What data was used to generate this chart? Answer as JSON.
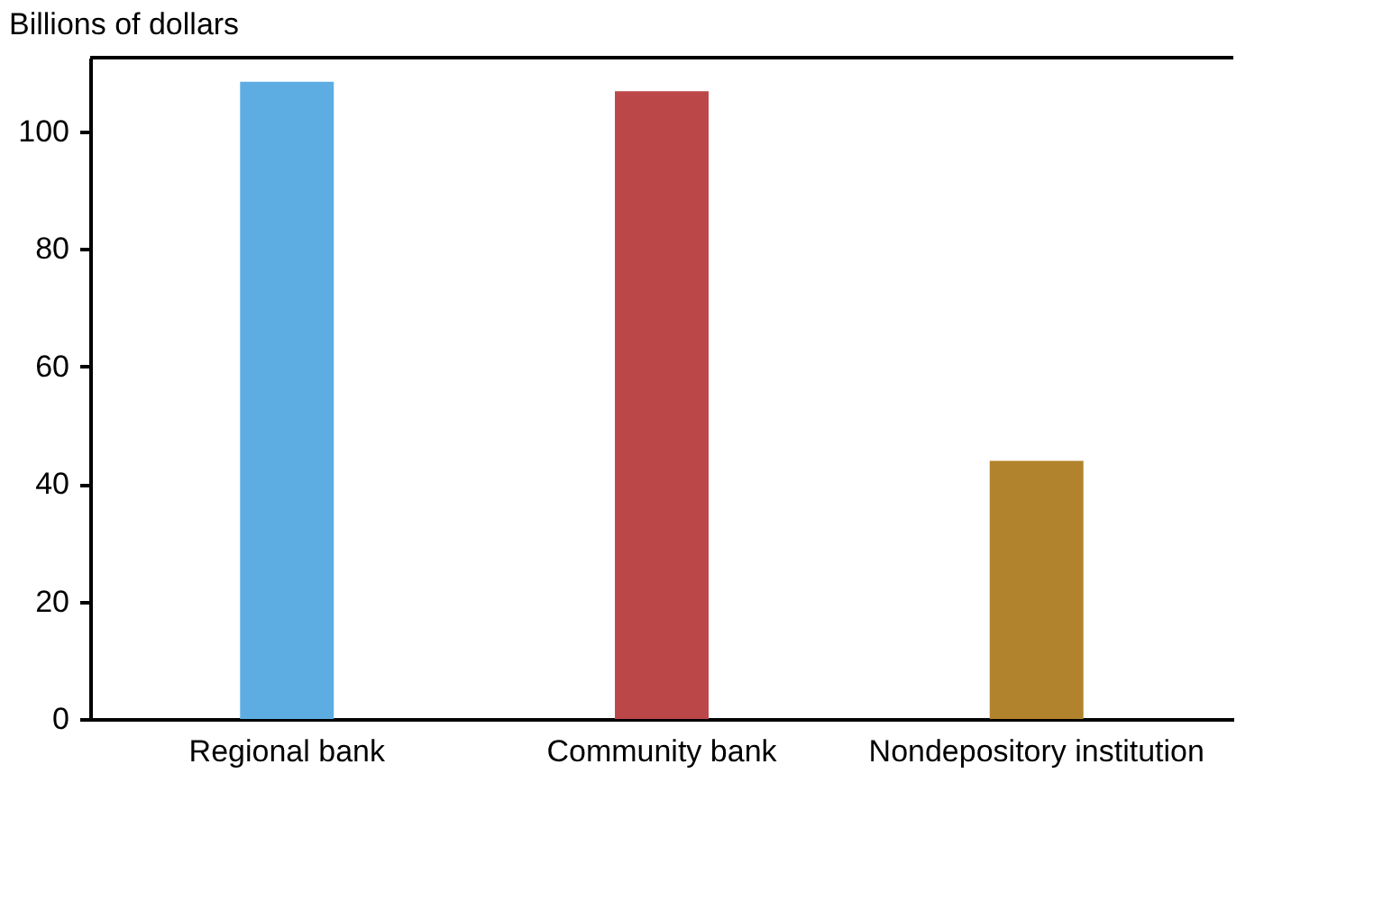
{
  "chart_data": {
    "type": "bar",
    "ylabel": "Billions of dollars",
    "categories": [
      "Regional bank",
      "Community bank",
      "Nondepository institution"
    ],
    "values": [
      108.4,
      106.8,
      43.9
    ],
    "colors": [
      "#5dade2",
      "#bc4749",
      "#b1832c"
    ],
    "ylim": [
      0,
      112.5
    ],
    "yticks": [
      0,
      20,
      40,
      60,
      80,
      100
    ],
    "grid": false
  }
}
